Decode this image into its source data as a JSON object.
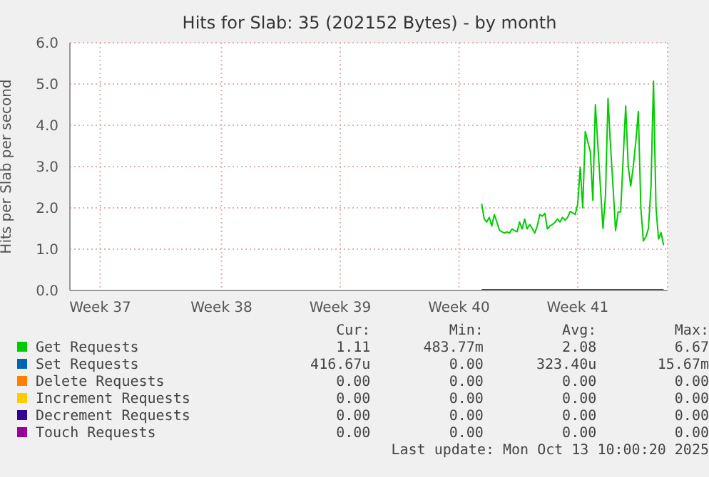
{
  "chart_data": {
    "type": "line",
    "title": "Hits for Slab: 35 (202152 Bytes) - by month",
    "ylabel": "Hits per Slab per second",
    "categories": [
      null,
      null,
      null,
      null,
      null,
      null,
      null,
      null,
      null,
      null,
      null,
      null,
      "Week 37",
      null,
      null,
      null,
      null,
      null,
      null,
      null,
      null,
      null,
      null,
      null,
      null,
      null,
      null,
      null,
      null,
      null,
      null,
      null,
      null,
      null,
      null,
      null,
      null,
      null,
      null,
      null,
      null,
      null,
      null,
      null,
      null,
      null,
      null,
      null,
      null,
      null,
      null,
      null,
      null,
      null,
      null,
      null,
      null,
      null,
      null,
      null,
      "Week 38",
      null,
      null,
      null,
      null,
      null,
      null,
      null,
      null,
      null,
      null,
      null,
      null,
      null,
      null,
      null,
      null,
      null,
      null,
      null,
      null,
      null,
      null,
      null,
      null,
      null,
      null,
      null,
      null,
      null,
      null,
      null,
      null,
      null,
      null,
      null,
      null,
      null,
      null,
      null,
      null,
      null,
      null,
      null,
      null,
      null,
      null,
      "Week 39",
      null,
      null,
      null,
      null,
      null,
      null,
      null,
      null,
      null,
      null,
      null,
      null,
      null,
      null,
      null,
      null,
      null,
      null,
      null,
      null,
      null,
      null,
      null,
      null,
      null,
      null,
      null,
      null,
      null,
      null,
      null,
      null,
      null,
      null,
      null,
      null,
      null,
      null,
      null,
      null,
      null,
      null,
      null,
      null,
      null,
      null,
      "Week 40",
      null,
      null,
      null,
      null,
      null,
      null,
      null,
      null,
      null,
      null,
      null,
      null,
      null,
      null,
      null,
      null,
      null,
      null,
      null,
      null,
      null,
      null,
      null,
      null,
      null,
      null,
      null,
      null,
      null,
      null,
      null,
      null,
      null,
      null,
      null,
      null,
      null,
      null,
      null,
      null,
      null,
      null,
      null,
      null,
      null,
      null,
      "Week 41",
      null,
      null,
      null,
      null,
      null,
      null,
      null,
      null,
      null,
      null,
      null,
      null,
      null,
      null,
      null,
      null,
      null,
      null,
      null,
      null,
      null,
      null,
      null,
      null,
      null,
      null,
      null,
      null,
      null,
      null,
      null,
      null,
      null,
      null,
      null
    ],
    "ylim": [
      0,
      6
    ],
    "yticks": [
      {
        "value": 0,
        "label": "0.0"
      },
      {
        "value": 1,
        "label": "1.0"
      },
      {
        "value": 2,
        "label": "2.0"
      },
      {
        "value": 3,
        "label": "3.0"
      },
      {
        "value": 4,
        "label": "4.0"
      },
      {
        "value": 5,
        "label": "5.0"
      },
      {
        "value": 6,
        "label": "6.0"
      }
    ],
    "grid": true,
    "legend": "bottom",
    "marker": "none",
    "line_style": "solid",
    "series": [
      {
        "name": "Get Requests",
        "color": "#00cc00",
        "values": [
          null,
          null,
          null,
          null,
          null,
          null,
          null,
          null,
          null,
          null,
          null,
          null,
          null,
          null,
          null,
          null,
          null,
          null,
          null,
          null,
          null,
          null,
          null,
          null,
          null,
          null,
          null,
          null,
          null,
          null,
          null,
          null,
          null,
          null,
          null,
          null,
          null,
          null,
          null,
          null,
          null,
          null,
          null,
          null,
          null,
          null,
          null,
          null,
          null,
          null,
          null,
          null,
          null,
          null,
          null,
          null,
          null,
          null,
          null,
          null,
          null,
          null,
          null,
          null,
          null,
          null,
          null,
          null,
          null,
          null,
          null,
          null,
          null,
          null,
          null,
          null,
          null,
          null,
          null,
          null,
          null,
          null,
          null,
          null,
          null,
          null,
          null,
          null,
          null,
          null,
          null,
          null,
          null,
          null,
          null,
          null,
          null,
          null,
          null,
          null,
          null,
          null,
          null,
          null,
          null,
          null,
          null,
          null,
          null,
          null,
          null,
          null,
          null,
          null,
          null,
          null,
          null,
          null,
          null,
          null,
          null,
          null,
          null,
          null,
          null,
          null,
          null,
          null,
          null,
          null,
          null,
          null,
          null,
          null,
          null,
          null,
          null,
          null,
          null,
          null,
          null,
          null,
          null,
          null,
          null,
          null,
          null,
          null,
          null,
          null,
          null,
          null,
          null,
          null,
          null,
          null,
          null,
          null,
          null,
          null,
          null,
          null,
          null,
          2.1,
          1.73,
          1.66,
          1.77,
          1.56,
          1.84,
          1.66,
          1.46,
          1.42,
          1.39,
          1.42,
          1.39,
          1.49,
          1.45,
          1.42,
          1.66,
          1.49,
          1.73,
          1.49,
          1.6,
          1.5,
          1.39,
          1.56,
          1.84,
          1.8,
          1.87,
          1.49,
          1.56,
          1.6,
          1.65,
          1.73,
          1.66,
          1.77,
          1.7,
          1.77,
          1.91,
          1.88,
          1.84,
          2.08,
          2.98,
          2.0,
          3.85,
          3.6,
          3.36,
          2.18,
          4.5,
          3.5,
          2.5,
          1.5,
          2.3,
          4.65,
          3.5,
          2.5,
          1.45,
          1.9,
          1.9,
          3.2,
          4.47,
          3.0,
          2.53,
          3.0,
          3.6,
          4.33,
          2.0,
          1.2,
          1.3,
          1.5,
          2.5,
          5.07,
          2.0,
          1.25,
          1.4,
          1.1,
          null
        ]
      },
      {
        "name": "Set Requests",
        "color": "#0066b3",
        "values": [
          null,
          null,
          null,
          null,
          null,
          null,
          null,
          null,
          null,
          null,
          null,
          null,
          null,
          null,
          null,
          null,
          null,
          null,
          null,
          null,
          null,
          null,
          null,
          null,
          null,
          null,
          null,
          null,
          null,
          null,
          null,
          null,
          null,
          null,
          null,
          null,
          null,
          null,
          null,
          null,
          null,
          null,
          null,
          null,
          null,
          null,
          null,
          null,
          null,
          null,
          null,
          null,
          null,
          null,
          null,
          null,
          null,
          null,
          null,
          null,
          null,
          null,
          null,
          null,
          null,
          null,
          null,
          null,
          null,
          null,
          null,
          null,
          null,
          null,
          null,
          null,
          null,
          null,
          null,
          null,
          null,
          null,
          null,
          null,
          null,
          null,
          null,
          null,
          null,
          null,
          null,
          null,
          null,
          null,
          null,
          null,
          null,
          null,
          null,
          null,
          null,
          null,
          null,
          null,
          null,
          null,
          null,
          null,
          null,
          null,
          null,
          null,
          null,
          null,
          null,
          null,
          null,
          null,
          null,
          null,
          null,
          null,
          null,
          null,
          null,
          null,
          null,
          null,
          null,
          null,
          null,
          null,
          null,
          null,
          null,
          null,
          null,
          null,
          null,
          null,
          null,
          null,
          null,
          null,
          null,
          null,
          null,
          null,
          null,
          null,
          null,
          null,
          null,
          null,
          null,
          null,
          null,
          null,
          null,
          null,
          null,
          null,
          null,
          null,
          null,
          null,
          null,
          null,
          null,
          null,
          null,
          null,
          null,
          null,
          null,
          null,
          null,
          null,
          null,
          null,
          null,
          null,
          null,
          null,
          null,
          null,
          null,
          null,
          null,
          null,
          null,
          null,
          null,
          null,
          null,
          null,
          null,
          null,
          null,
          null,
          null,
          null,
          null,
          null,
          null,
          null,
          null,
          null,
          null,
          null,
          null,
          null,
          null,
          null,
          null,
          null,
          null,
          null,
          null,
          null,
          null,
          null,
          null,
          null,
          null,
          null,
          null,
          null,
          null,
          null,
          null,
          null,
          null,
          null,
          null,
          null,
          null
        ]
      },
      {
        "name": "Delete Requests",
        "color": "#ff8000",
        "values": [
          null,
          null,
          null,
          null,
          null,
          null,
          null,
          null,
          null,
          null,
          null,
          null,
          null,
          null,
          null,
          null,
          null,
          null,
          null,
          null,
          null,
          null,
          null,
          null,
          null,
          null,
          null,
          null,
          null,
          null,
          null,
          null,
          null,
          null,
          null,
          null,
          null,
          null,
          null,
          null,
          null,
          null,
          null,
          null,
          null,
          null,
          null,
          null,
          null,
          null,
          null,
          null,
          null,
          null,
          null,
          null,
          null,
          null,
          null,
          null,
          null,
          null,
          null,
          null,
          null,
          null,
          null,
          null,
          null,
          null,
          null,
          null,
          null,
          null,
          null,
          null,
          null,
          null,
          null,
          null,
          null,
          null,
          null,
          null,
          null,
          null,
          null,
          null,
          null,
          null,
          null,
          null,
          null,
          null,
          null,
          null,
          null,
          null,
          null,
          null,
          null,
          null,
          null,
          null,
          null,
          null,
          null,
          null,
          null,
          null,
          null,
          null,
          null,
          null,
          null,
          null,
          null,
          null,
          null,
          null,
          null,
          null,
          null,
          null,
          null,
          null,
          null,
          null,
          null,
          null,
          null,
          null,
          null,
          null,
          null,
          null,
          null,
          null,
          null,
          null,
          null,
          null,
          null,
          null,
          null,
          null,
          null,
          null,
          null,
          null,
          null,
          null,
          null,
          null,
          null,
          null,
          null,
          null,
          null,
          null,
          null,
          null,
          null,
          null,
          null,
          null,
          null,
          null,
          null,
          null,
          null,
          null,
          null,
          null,
          null,
          null,
          null,
          null,
          null,
          null,
          null,
          null,
          null,
          null,
          null,
          null,
          null,
          null,
          null,
          null,
          null,
          null,
          null,
          null,
          null,
          null,
          null,
          null,
          null,
          null,
          null,
          null,
          null,
          null,
          null,
          null,
          null,
          null,
          null,
          null,
          null,
          null,
          null,
          null,
          null,
          null,
          null,
          null,
          null,
          null,
          null,
          null,
          null,
          null,
          null,
          null,
          null,
          null,
          null,
          null,
          null,
          null,
          null,
          null,
          null,
          null,
          null
        ]
      },
      {
        "name": "Increment Requests",
        "color": "#ffcc00",
        "values": [
          null,
          null,
          null,
          null,
          null,
          null,
          null,
          null,
          null,
          null,
          null,
          null,
          null,
          null,
          null,
          null,
          null,
          null,
          null,
          null,
          null,
          null,
          null,
          null,
          null,
          null,
          null,
          null,
          null,
          null,
          null,
          null,
          null,
          null,
          null,
          null,
          null,
          null,
          null,
          null,
          null,
          null,
          null,
          null,
          null,
          null,
          null,
          null,
          null,
          null,
          null,
          null,
          null,
          null,
          null,
          null,
          null,
          null,
          null,
          null,
          null,
          null,
          null,
          null,
          null,
          null,
          null,
          null,
          null,
          null,
          null,
          null,
          null,
          null,
          null,
          null,
          null,
          null,
          null,
          null,
          null,
          null,
          null,
          null,
          null,
          null,
          null,
          null,
          null,
          null,
          null,
          null,
          null,
          null,
          null,
          null,
          null,
          null,
          null,
          null,
          null,
          null,
          null,
          null,
          null,
          null,
          null,
          null,
          null,
          null,
          null,
          null,
          null,
          null,
          null,
          null,
          null,
          null,
          null,
          null,
          null,
          null,
          null,
          null,
          null,
          null,
          null,
          null,
          null,
          null,
          null,
          null,
          null,
          null,
          null,
          null,
          null,
          null,
          null,
          null,
          null,
          null,
          null,
          null,
          null,
          null,
          null,
          null,
          null,
          null,
          null,
          null,
          null,
          null,
          null,
          null,
          null,
          null,
          null,
          null,
          null,
          null,
          null,
          null,
          null,
          null,
          null,
          null,
          null,
          null,
          null,
          null,
          null,
          null,
          null,
          null,
          null,
          null,
          null,
          null,
          null,
          null,
          null,
          null,
          null,
          null,
          null,
          null,
          null,
          null,
          null,
          null,
          null,
          null,
          null,
          null,
          null,
          null,
          null,
          null,
          null,
          null,
          null,
          null,
          null,
          null,
          null,
          null,
          null,
          null,
          null,
          null,
          null,
          null,
          null,
          null,
          null,
          null,
          null,
          null,
          null,
          null,
          null,
          null,
          null,
          null,
          null,
          null,
          null,
          null,
          null,
          null,
          null,
          null,
          null,
          null,
          null
        ]
      },
      {
        "name": "Decrement Requests",
        "color": "#330099",
        "values": [
          null,
          null,
          null,
          null,
          null,
          null,
          null,
          null,
          null,
          null,
          null,
          null,
          null,
          null,
          null,
          null,
          null,
          null,
          null,
          null,
          null,
          null,
          null,
          null,
          null,
          null,
          null,
          null,
          null,
          null,
          null,
          null,
          null,
          null,
          null,
          null,
          null,
          null,
          null,
          null,
          null,
          null,
          null,
          null,
          null,
          null,
          null,
          null,
          null,
          null,
          null,
          null,
          null,
          null,
          null,
          null,
          null,
          null,
          null,
          null,
          null,
          null,
          null,
          null,
          null,
          null,
          null,
          null,
          null,
          null,
          null,
          null,
          null,
          null,
          null,
          null,
          null,
          null,
          null,
          null,
          null,
          null,
          null,
          null,
          null,
          null,
          null,
          null,
          null,
          null,
          null,
          null,
          null,
          null,
          null,
          null,
          null,
          null,
          null,
          null,
          null,
          null,
          null,
          null,
          null,
          null,
          null,
          null,
          null,
          null,
          null,
          null,
          null,
          null,
          null,
          null,
          null,
          null,
          null,
          null,
          null,
          null,
          null,
          null,
          null,
          null,
          null,
          null,
          null,
          null,
          null,
          null,
          null,
          null,
          null,
          null,
          null,
          null,
          null,
          null,
          null,
          null,
          null,
          null,
          null,
          null,
          null,
          null,
          null,
          null,
          null,
          null,
          null,
          null,
          null,
          null,
          null,
          null,
          null,
          null,
          null,
          null,
          null,
          null,
          null,
          null,
          null,
          null,
          null,
          null,
          null,
          null,
          null,
          null,
          null,
          null,
          null,
          null,
          null,
          null,
          null,
          null,
          null,
          null,
          null,
          null,
          null,
          null,
          null,
          null,
          null,
          null,
          null,
          null,
          null,
          null,
          null,
          null,
          null,
          null,
          null,
          null,
          null,
          null,
          null,
          null,
          null,
          null,
          null,
          null,
          null,
          null,
          null,
          null,
          null,
          null,
          null,
          null,
          null,
          null,
          null,
          null,
          null,
          null,
          null,
          null,
          null,
          null,
          null,
          null,
          null,
          null,
          null,
          null,
          null,
          null,
          null
        ]
      },
      {
        "name": "Touch Requests",
        "color": "#990099",
        "values": [
          null,
          null,
          null,
          null,
          null,
          null,
          null,
          null,
          null,
          null,
          null,
          null,
          null,
          null,
          null,
          null,
          null,
          null,
          null,
          null,
          null,
          null,
          null,
          null,
          null,
          null,
          null,
          null,
          null,
          null,
          null,
          null,
          null,
          null,
          null,
          null,
          null,
          null,
          null,
          null,
          null,
          null,
          null,
          null,
          null,
          null,
          null,
          null,
          null,
          null,
          null,
          null,
          null,
          null,
          null,
          null,
          null,
          null,
          null,
          null,
          null,
          null,
          null,
          null,
          null,
          null,
          null,
          null,
          null,
          null,
          null,
          null,
          null,
          null,
          null,
          null,
          null,
          null,
          null,
          null,
          null,
          null,
          null,
          null,
          null,
          null,
          null,
          null,
          null,
          null,
          null,
          null,
          null,
          null,
          null,
          null,
          null,
          null,
          null,
          null,
          null,
          null,
          null,
          null,
          null,
          null,
          null,
          null,
          null,
          null,
          null,
          null,
          null,
          null,
          null,
          null,
          null,
          null,
          null,
          null,
          null,
          null,
          null,
          null,
          null,
          null,
          null,
          null,
          null,
          null,
          null,
          null,
          null,
          null,
          null,
          null,
          null,
          null,
          null,
          null,
          null,
          null,
          null,
          null,
          null,
          null,
          null,
          null,
          null,
          null,
          null,
          null,
          null,
          null,
          null,
          null,
          null,
          null,
          null,
          null,
          null,
          null,
          null,
          0,
          0,
          0,
          0,
          0,
          0,
          0,
          0,
          0,
          0,
          0,
          0,
          0,
          0,
          0,
          0,
          0,
          0,
          0,
          0,
          0,
          0,
          0,
          0,
          0,
          0,
          0,
          0,
          0,
          0,
          0,
          0,
          0,
          0,
          0,
          0,
          0,
          0,
          0,
          0,
          0,
          0,
          0,
          0,
          0,
          0,
          0,
          0,
          0,
          0,
          0,
          0,
          0,
          0,
          0,
          0,
          0,
          0,
          0,
          0,
          0,
          0,
          0,
          0,
          0,
          0,
          0,
          0,
          0,
          0,
          0,
          0,
          0,
          null
        ]
      }
    ],
    "annotations": [
      "Cur:",
      "Min:",
      "Avg:",
      "Max:",
      "1.11",
      "483.77m",
      "2.08",
      "6.67",
      "416.67u",
      "0.00",
      "323.40u",
      "15.67m",
      "0.00",
      "0.00",
      "0.00",
      "0.00",
      "0.00",
      "0.00",
      "0.00",
      "0.00",
      "0.00",
      "0.00",
      "0.00",
      "0.00",
      "0.00",
      "0.00",
      "0.00",
      "0.00",
      "Last update: Mon Oct 13 10:00:20 2025"
    ]
  }
}
